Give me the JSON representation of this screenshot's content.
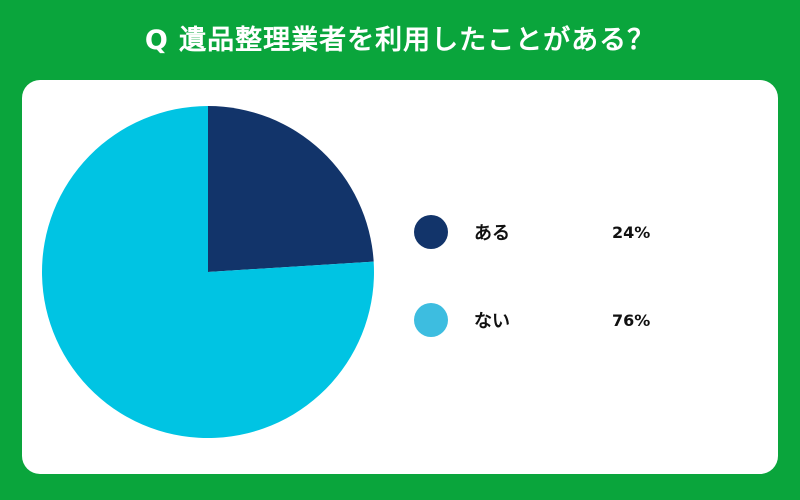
{
  "title": "Q 遺品整理業者を利用したことがある？",
  "chart_data": {
    "type": "pie",
    "categories": [
      "ある",
      "ない"
    ],
    "values": [
      24,
      76
    ],
    "value_labels": [
      "24%",
      "76%"
    ],
    "colors": [
      "#12346a",
      "#00c4e3"
    ],
    "legend_colors": [
      "#12346a",
      "#3dbde0"
    ],
    "legend_position": "right"
  }
}
